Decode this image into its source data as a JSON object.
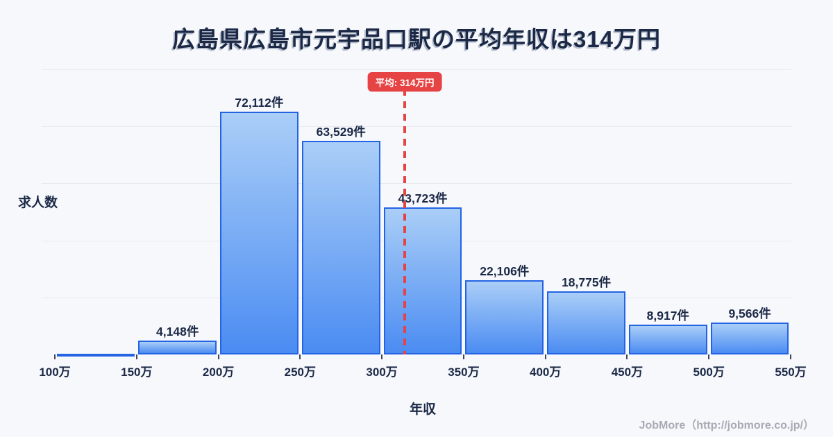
{
  "page": {
    "title": "広島県広島市元宇品口駅の平均年収は314万円",
    "footer": "JobMore（http://jobmore.co.jp/）"
  },
  "chart_data": {
    "type": "bar",
    "title": "広島県広島市元宇品口駅の平均年収は314万円",
    "xlabel": "年収",
    "ylabel": "求人数",
    "x_tick_labels": [
      "100万",
      "150万",
      "200万",
      "250万",
      "300万",
      "350万",
      "400万",
      "450万",
      "500万",
      "550万"
    ],
    "xlim_man": [
      100,
      550
    ],
    "ylim": [
      0,
      84800
    ],
    "grid": "horizontal",
    "legend": "none",
    "bars": [
      {
        "range_man": [
          100,
          150
        ],
        "value": null,
        "label": ""
      },
      {
        "range_man": [
          150,
          200
        ],
        "value": 4148,
        "label": "4,148件"
      },
      {
        "range_man": [
          200,
          250
        ],
        "value": 72112,
        "label": "72,112件"
      },
      {
        "range_man": [
          250,
          300
        ],
        "value": 63529,
        "label": "63,529件"
      },
      {
        "range_man": [
          300,
          350
        ],
        "value": 43723,
        "label": "43,723件"
      },
      {
        "range_man": [
          350,
          400
        ],
        "value": 22106,
        "label": "22,106件"
      },
      {
        "range_man": [
          400,
          450
        ],
        "value": 18775,
        "label": "18,775件"
      },
      {
        "range_man": [
          450,
          500
        ],
        "value": 8917,
        "label": "8,917件"
      },
      {
        "range_man": [
          500,
          550
        ],
        "value": 9566,
        "label": "9,566件"
      }
    ],
    "average": {
      "value_man": 314,
      "label": "平均: 314万円"
    },
    "colors": {
      "background": "#f7f8fc",
      "text": "#1b2946",
      "gridline": "#e7e9f1",
      "bar_gradient_top": "#aacef7",
      "bar_gradient_bottom": "#4b8cf2",
      "bar_border": "#2464e4",
      "average_red": "#e64444",
      "watermark_gray": "#a7abb3"
    }
  }
}
